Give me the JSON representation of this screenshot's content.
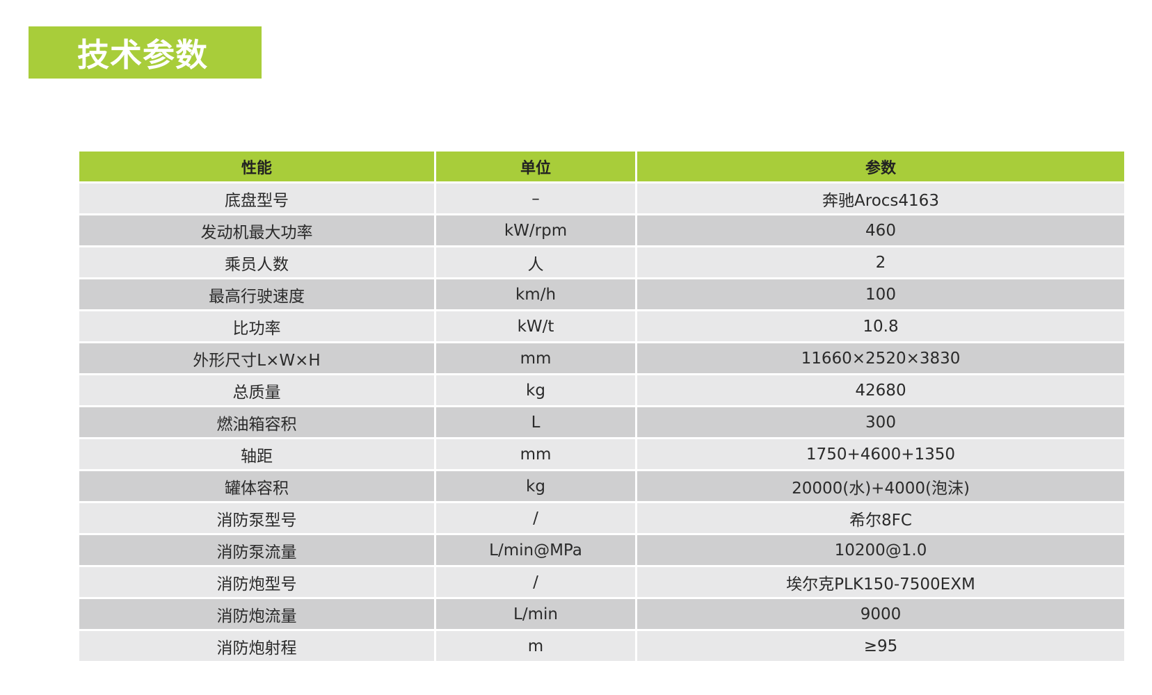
{
  "title": "技术参数",
  "colors": {
    "accent": "#a8cd3a",
    "row_light": "#e8e8e9",
    "row_dark": "#cfcfd0"
  },
  "table": {
    "headers": [
      "性能",
      "单位",
      "参数"
    ],
    "rows": [
      [
        "底盘型号",
        "–",
        "奔驰Arocs4163"
      ],
      [
        "发动机最大功率",
        "kW/rpm",
        "460"
      ],
      [
        "乘员人数",
        "人",
        "2"
      ],
      [
        "最高行驶速度",
        "km/h",
        "100"
      ],
      [
        "比功率",
        "kW/t",
        "10.8"
      ],
      [
        "外形尺寸L×W×H",
        "mm",
        "11660×2520×3830"
      ],
      [
        "总质量",
        "kg",
        "42680"
      ],
      [
        "燃油箱容积",
        "L",
        "300"
      ],
      [
        "轴距",
        "mm",
        "1750+4600+1350"
      ],
      [
        "罐体容积",
        "kg",
        "20000(水)+4000(泡沫)"
      ],
      [
        "消防泵型号",
        "/",
        "希尔8FC"
      ],
      [
        "消防泵流量",
        "L/min@MPa",
        "10200@1.0"
      ],
      [
        "消防炮型号",
        "/",
        "埃尔克PLK150-7500EXM"
      ],
      [
        "消防炮流量",
        "L/min",
        "9000"
      ],
      [
        "消防炮射程",
        "m",
        "≥95"
      ]
    ]
  }
}
